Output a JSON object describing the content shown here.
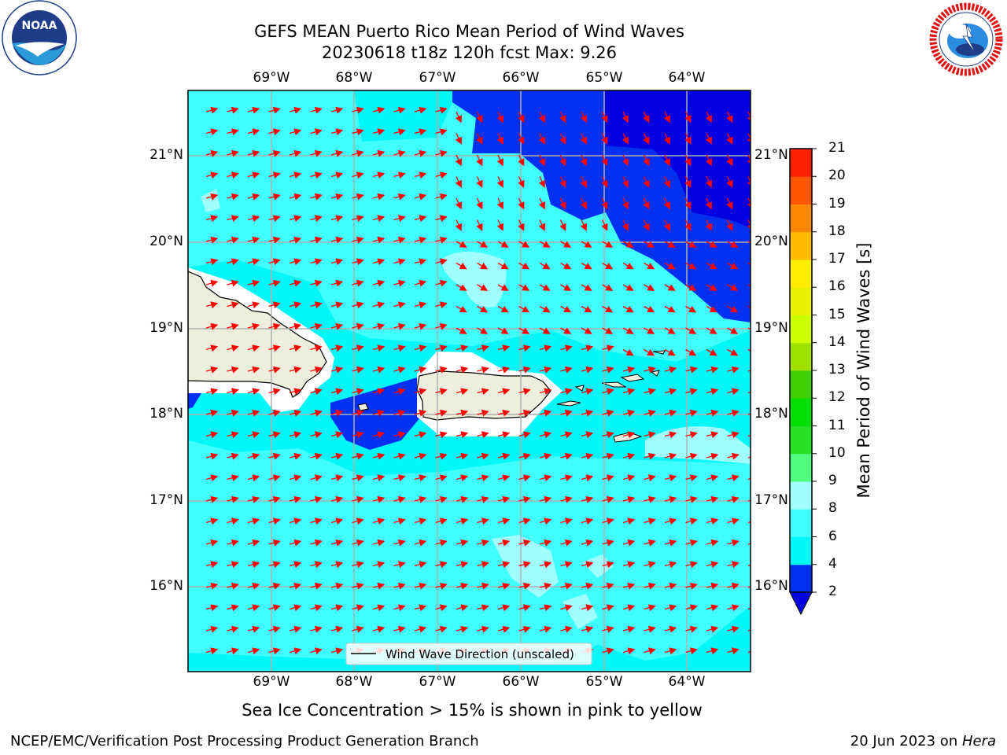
{
  "header": {
    "title_line1": "GEFS MEAN Puerto Rico Mean Period of Wind Waves",
    "title_line2": "20230618 t18z 120h fcst   Max: 9.26"
  },
  "logos": {
    "noaa_text": "NOAA",
    "noaa_ring_text": "NATIONAL OCEANIC AND ATMOSPHERIC ADMINISTRATION · U.S. DEPARTMENT OF COMMERCE",
    "nws_ring_text": "NATIONAL WEATHER SERVICE"
  },
  "map": {
    "lon_labels": [
      "69°W",
      "68°W",
      "67°W",
      "66°W",
      "65°W",
      "64°W"
    ],
    "lat_labels": [
      "21°N",
      "20°N",
      "19°N",
      "18°N",
      "17°N",
      "16°N"
    ],
    "legend_label": "Wind Wave Direction (unscaled)",
    "arrow_color": "#ff0000",
    "land_color": "#eeeedd",
    "gridline_color": "#b0b0b0"
  },
  "colorbar": {
    "label": "Mean Period of Wind Waves [s]",
    "ticks": [
      "2",
      "4",
      "6",
      "8",
      "9",
      "10",
      "11",
      "12",
      "13",
      "14",
      "15",
      "16",
      "17",
      "18",
      "19",
      "20",
      "21"
    ],
    "colors": [
      "#0030f0",
      "#00f8f8",
      "#40ffff",
      "#a0ffff",
      "#50ff80",
      "#28e028",
      "#00e000",
      "#40d000",
      "#a0e000",
      "#ccff00",
      "#e8f000",
      "#ffee00",
      "#ffbb00",
      "#ff8800",
      "#ff5500",
      "#ff2200",
      "#ff0000"
    ],
    "extend_color": "#0000e0"
  },
  "footer": {
    "subtitle": "Sea Ice Concentration > 15% is shown in pink to yellow",
    "left": "NCEP/EMC/Verification Post Processing Product Generation Branch",
    "right_prefix": "20 Jun 2023 on ",
    "right_host": "Hera"
  }
}
